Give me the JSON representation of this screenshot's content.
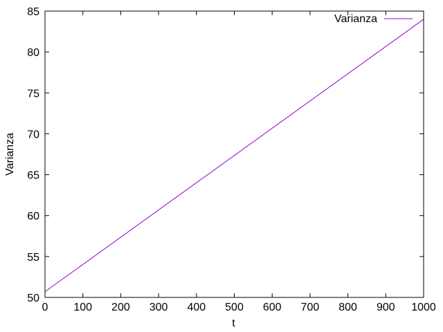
{
  "chart_data": {
    "type": "line",
    "title": "",
    "xlabel": "t",
    "ylabel": "Varianza",
    "xlim": [
      0,
      1000
    ],
    "ylim": [
      50,
      85
    ],
    "xticks": [
      "0",
      "100",
      "200",
      "300",
      "400",
      "500",
      "600",
      "700",
      "800",
      "900",
      "1000"
    ],
    "yticks": [
      "50",
      "55",
      "60",
      "65",
      "70",
      "75",
      "80",
      "85"
    ],
    "grid": false,
    "legend_position": "top-right",
    "series": [
      {
        "name": "Varianza",
        "color": "#9400d3",
        "x": [
          0,
          1000
        ],
        "y": [
          50.7,
          84.0
        ]
      }
    ]
  }
}
